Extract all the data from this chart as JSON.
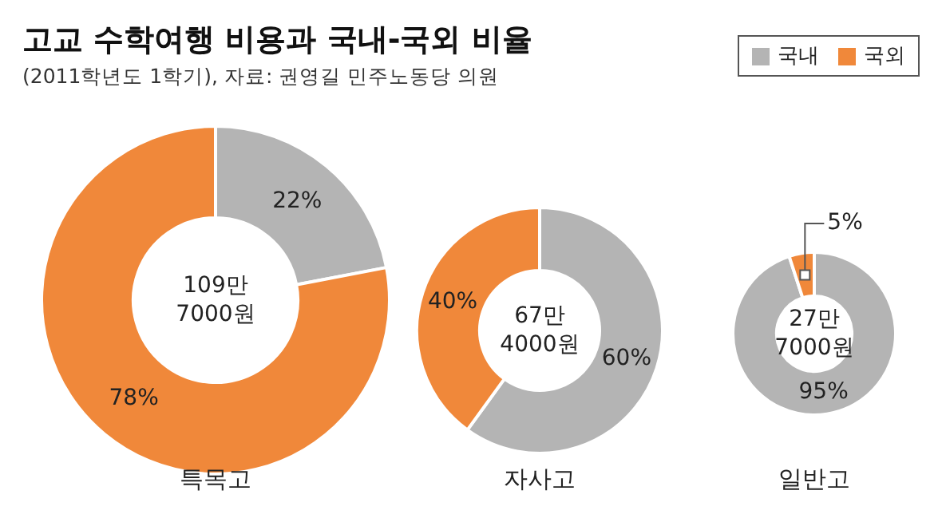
{
  "chart_data": [
    {
      "type": "donut",
      "title": "고교 수학여행 비용과 국내-국외 비율",
      "subtitle": "(2011학년도 1학기), 자료: 권영길 민주노동당 의원",
      "legend": "top right",
      "xlabel": "특목고",
      "categories": [
        "국내",
        "국외"
      ],
      "values": [
        22,
        78
      ],
      "colors": [
        "#b4b4b4",
        "#f0883a"
      ],
      "value_labels": [
        "22%",
        "78%"
      ],
      "annotations": [
        "109만 7000원"
      ]
    },
    {
      "type": "donut",
      "xlabel": "자사고",
      "categories": [
        null,
        null
      ],
      "values": [
        60,
        40
      ],
      "colors": [
        "#b4b4b4",
        "#f0883a"
      ],
      "value_labels": [
        "60%",
        "40%"
      ],
      "annotations": [
        "67만 4000원"
      ]
    },
    {
      "type": "donut",
      "xlabel": "일반고",
      "categories": [
        null,
        null
      ],
      "values": [
        95,
        5
      ],
      "colors": [
        "#b4b4b4",
        "#f0883a"
      ],
      "value_labels": [
        "95%",
        "5%"
      ],
      "annotations": [
        "27만 7000원"
      ]
    }
  ]
}
